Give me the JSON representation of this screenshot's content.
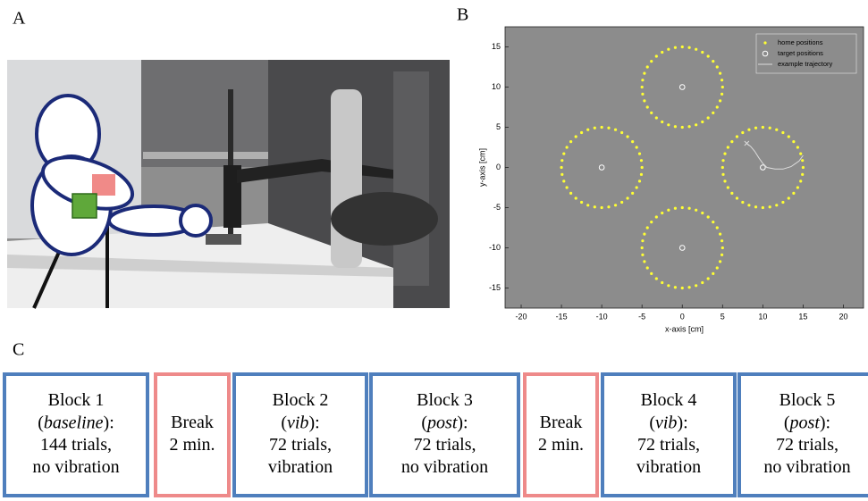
{
  "panel_labels": [
    "A",
    "B",
    "C"
  ],
  "chart_data": {
    "type": "scatter",
    "x_label": "x-axis [cm]",
    "y_label": "y-axis [cm]",
    "xlim": [
      -22,
      22.5
    ],
    "ylim": [
      -17.5,
      17.5
    ],
    "xticks": [
      -20,
      -15,
      -10,
      -5,
      0,
      5,
      10,
      15,
      20
    ],
    "yticks": [
      -15,
      -10,
      -5,
      0,
      5,
      10,
      15
    ],
    "background": "#8c8c8c",
    "legend": "upper right",
    "series": [
      {
        "name": "home positions",
        "color": "#ffff33",
        "marker": "dot",
        "x": [
          5,
          4.92,
          4.7,
          4.33,
          3.83,
          3.21,
          2.5,
          1.71,
          0.87,
          0,
          -0.87,
          -1.71,
          -2.5,
          -3.21,
          -3.83,
          -4.33,
          -4.7,
          -4.92,
          -5,
          -4.92,
          -4.7,
          -4.33,
          -3.83,
          -3.21,
          -2.5,
          -1.71,
          -0.87,
          0,
          0.87,
          1.71,
          2.5,
          3.21,
          3.83,
          4.33,
          4.7,
          4.92,
          -5,
          -5.08,
          -5.3,
          -5.67,
          -6.17,
          -6.79,
          -7.5,
          -8.29,
          -9.13,
          -10,
          -10.87,
          -11.71,
          -12.5,
          -13.21,
          -13.83,
          -14.33,
          -14.7,
          -14.92,
          -15,
          -14.92,
          -14.7,
          -14.33,
          -13.83,
          -13.21,
          -12.5,
          -11.71,
          -10.87,
          -10,
          -9.13,
          -8.29,
          -7.5,
          -6.79,
          -6.17,
          -5.67,
          -5.3,
          -5.08,
          5,
          4.92,
          4.7,
          4.33,
          3.83,
          3.21,
          2.5,
          1.71,
          0.87,
          0,
          -0.87,
          -1.71,
          -2.5,
          -3.21,
          -3.83,
          -4.33,
          -4.7,
          -4.92,
          -5,
          -4.92,
          -4.7,
          -4.33,
          -3.83,
          -3.21,
          -2.5,
          -1.71,
          -0.87,
          0,
          0.87,
          1.71,
          2.5,
          3.21,
          3.83,
          4.33,
          4.7,
          4.92,
          15,
          14.92,
          14.7,
          14.33,
          13.83,
          13.21,
          12.5,
          11.71,
          10.87,
          10,
          9.13,
          8.29,
          7.5,
          6.79,
          6.17,
          5.67,
          5.3,
          5.08,
          5,
          5.08,
          5.3,
          5.67,
          6.17,
          6.79,
          7.5,
          8.29,
          9.13,
          10,
          10.87,
          11.71,
          12.5,
          13.21,
          13.83,
          14.33,
          14.7,
          14.92
        ],
        "y": [
          10,
          10.87,
          11.71,
          12.5,
          13.21,
          13.83,
          14.33,
          14.7,
          14.92,
          15,
          14.92,
          14.7,
          14.33,
          13.83,
          13.21,
          12.5,
          11.71,
          10.87,
          10,
          9.13,
          8.29,
          7.5,
          6.79,
          6.17,
          5.67,
          5.3,
          5.08,
          5,
          5.08,
          5.3,
          5.67,
          6.17,
          6.79,
          7.5,
          8.29,
          9.13,
          0,
          0.87,
          1.71,
          2.5,
          3.21,
          3.83,
          4.33,
          4.7,
          4.92,
          5,
          4.92,
          4.7,
          4.33,
          3.83,
          3.21,
          2.5,
          1.71,
          0.87,
          0,
          -0.87,
          -1.71,
          -2.5,
          -3.21,
          -3.83,
          -4.33,
          -4.7,
          -4.92,
          -5,
          -4.92,
          -4.7,
          -4.33,
          -3.83,
          -3.21,
          -2.5,
          -1.71,
          -0.87,
          -10,
          -9.13,
          -8.29,
          -7.5,
          -6.79,
          -6.17,
          -5.67,
          -5.3,
          -5.08,
          -5,
          -5.08,
          -5.3,
          -5.67,
          -6.17,
          -6.79,
          -7.5,
          -8.29,
          -9.13,
          -10,
          -10.87,
          -11.71,
          -12.5,
          -13.21,
          -13.83,
          -14.33,
          -14.7,
          -14.92,
          -15,
          -14.92,
          -14.7,
          -14.33,
          -13.83,
          -13.21,
          -12.5,
          -11.71,
          -10.87,
          0,
          0.87,
          1.71,
          2.5,
          3.21,
          3.83,
          4.33,
          4.7,
          4.92,
          5,
          4.92,
          4.7,
          4.33,
          3.83,
          3.21,
          2.5,
          1.71,
          0.87,
          0,
          -0.87,
          -1.71,
          -2.5,
          -3.21,
          -3.83,
          -4.33,
          -4.7,
          -4.92,
          -5,
          -4.92,
          -4.7,
          -4.33,
          -3.83,
          -3.21,
          -2.5,
          -1.71,
          -0.87
        ]
      },
      {
        "name": "target positions",
        "color": "#ffffff",
        "marker": "ring",
        "x": [
          0,
          -10,
          0,
          10
        ],
        "y": [
          10,
          0,
          -10,
          0
        ]
      },
      {
        "name": "example trajectory",
        "color": "#dddddd",
        "marker": "line",
        "x": [
          15,
          14.5,
          13.5,
          12.5,
          11.5,
          10.5,
          10,
          9.5,
          9,
          8.5,
          8
        ],
        "y": [
          1.5,
          0.8,
          0.1,
          -0.2,
          -0.2,
          0,
          0.5,
          1.2,
          2,
          2.6,
          3
        ]
      }
    ]
  },
  "blocks": [
    {
      "border": "#4f7fbd",
      "lines": [
        "Block 1",
        {
          "open": "(",
          "italic": "baseline",
          "close": "):"
        },
        "144 trials,",
        "no vibration"
      ]
    },
    {
      "border": "#ee8a8a",
      "lines": [
        "Break",
        "2 min."
      ]
    },
    {
      "border": "#4f7fbd",
      "lines": [
        "Block 2",
        {
          "open": "(",
          "italic": "vib",
          "close": "):"
        },
        "72 trials,",
        "vibration"
      ]
    },
    {
      "border": "#4f7fbd",
      "lines": [
        "Block 3",
        {
          "open": "(",
          "italic": "post",
          "close": "):"
        },
        "72 trials,",
        "no vibration"
      ]
    },
    {
      "border": "#ee8a8a",
      "lines": [
        "Break",
        "2 min."
      ]
    },
    {
      "border": "#4f7fbd",
      "lines": [
        "Block 4",
        {
          "open": "(",
          "italic": "vib",
          "close": "):"
        },
        "72 trials,",
        "vibration"
      ]
    },
    {
      "border": "#4f7fbd",
      "lines": [
        "Block 5",
        {
          "open": "(",
          "italic": "post",
          "close": "):"
        },
        "72 trials,",
        "no vibration"
      ]
    }
  ]
}
